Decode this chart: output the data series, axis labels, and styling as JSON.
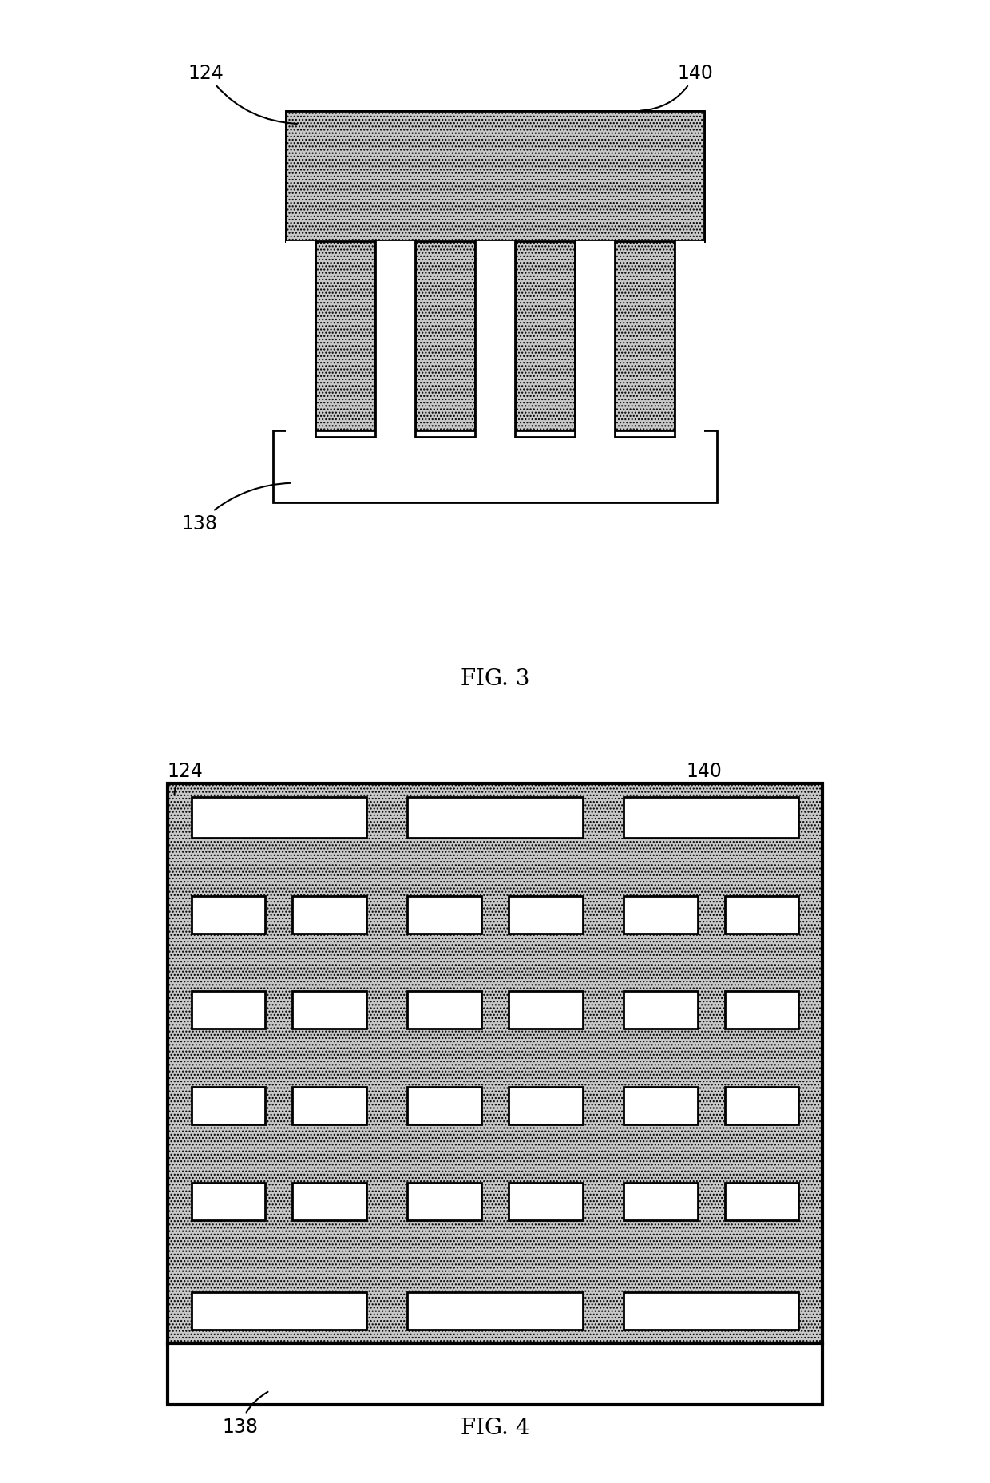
{
  "fig3_label": "FIG. 3",
  "fig4_label": "FIG. 4",
  "label_124": "124",
  "label_138": "138",
  "label_140": "140",
  "gray_color": "#c8c8c8",
  "white_color": "#ffffff",
  "black_color": "#000000",
  "line_width": 2.0,
  "hatch_pattern": "....",
  "bg_color": "#ffffff"
}
